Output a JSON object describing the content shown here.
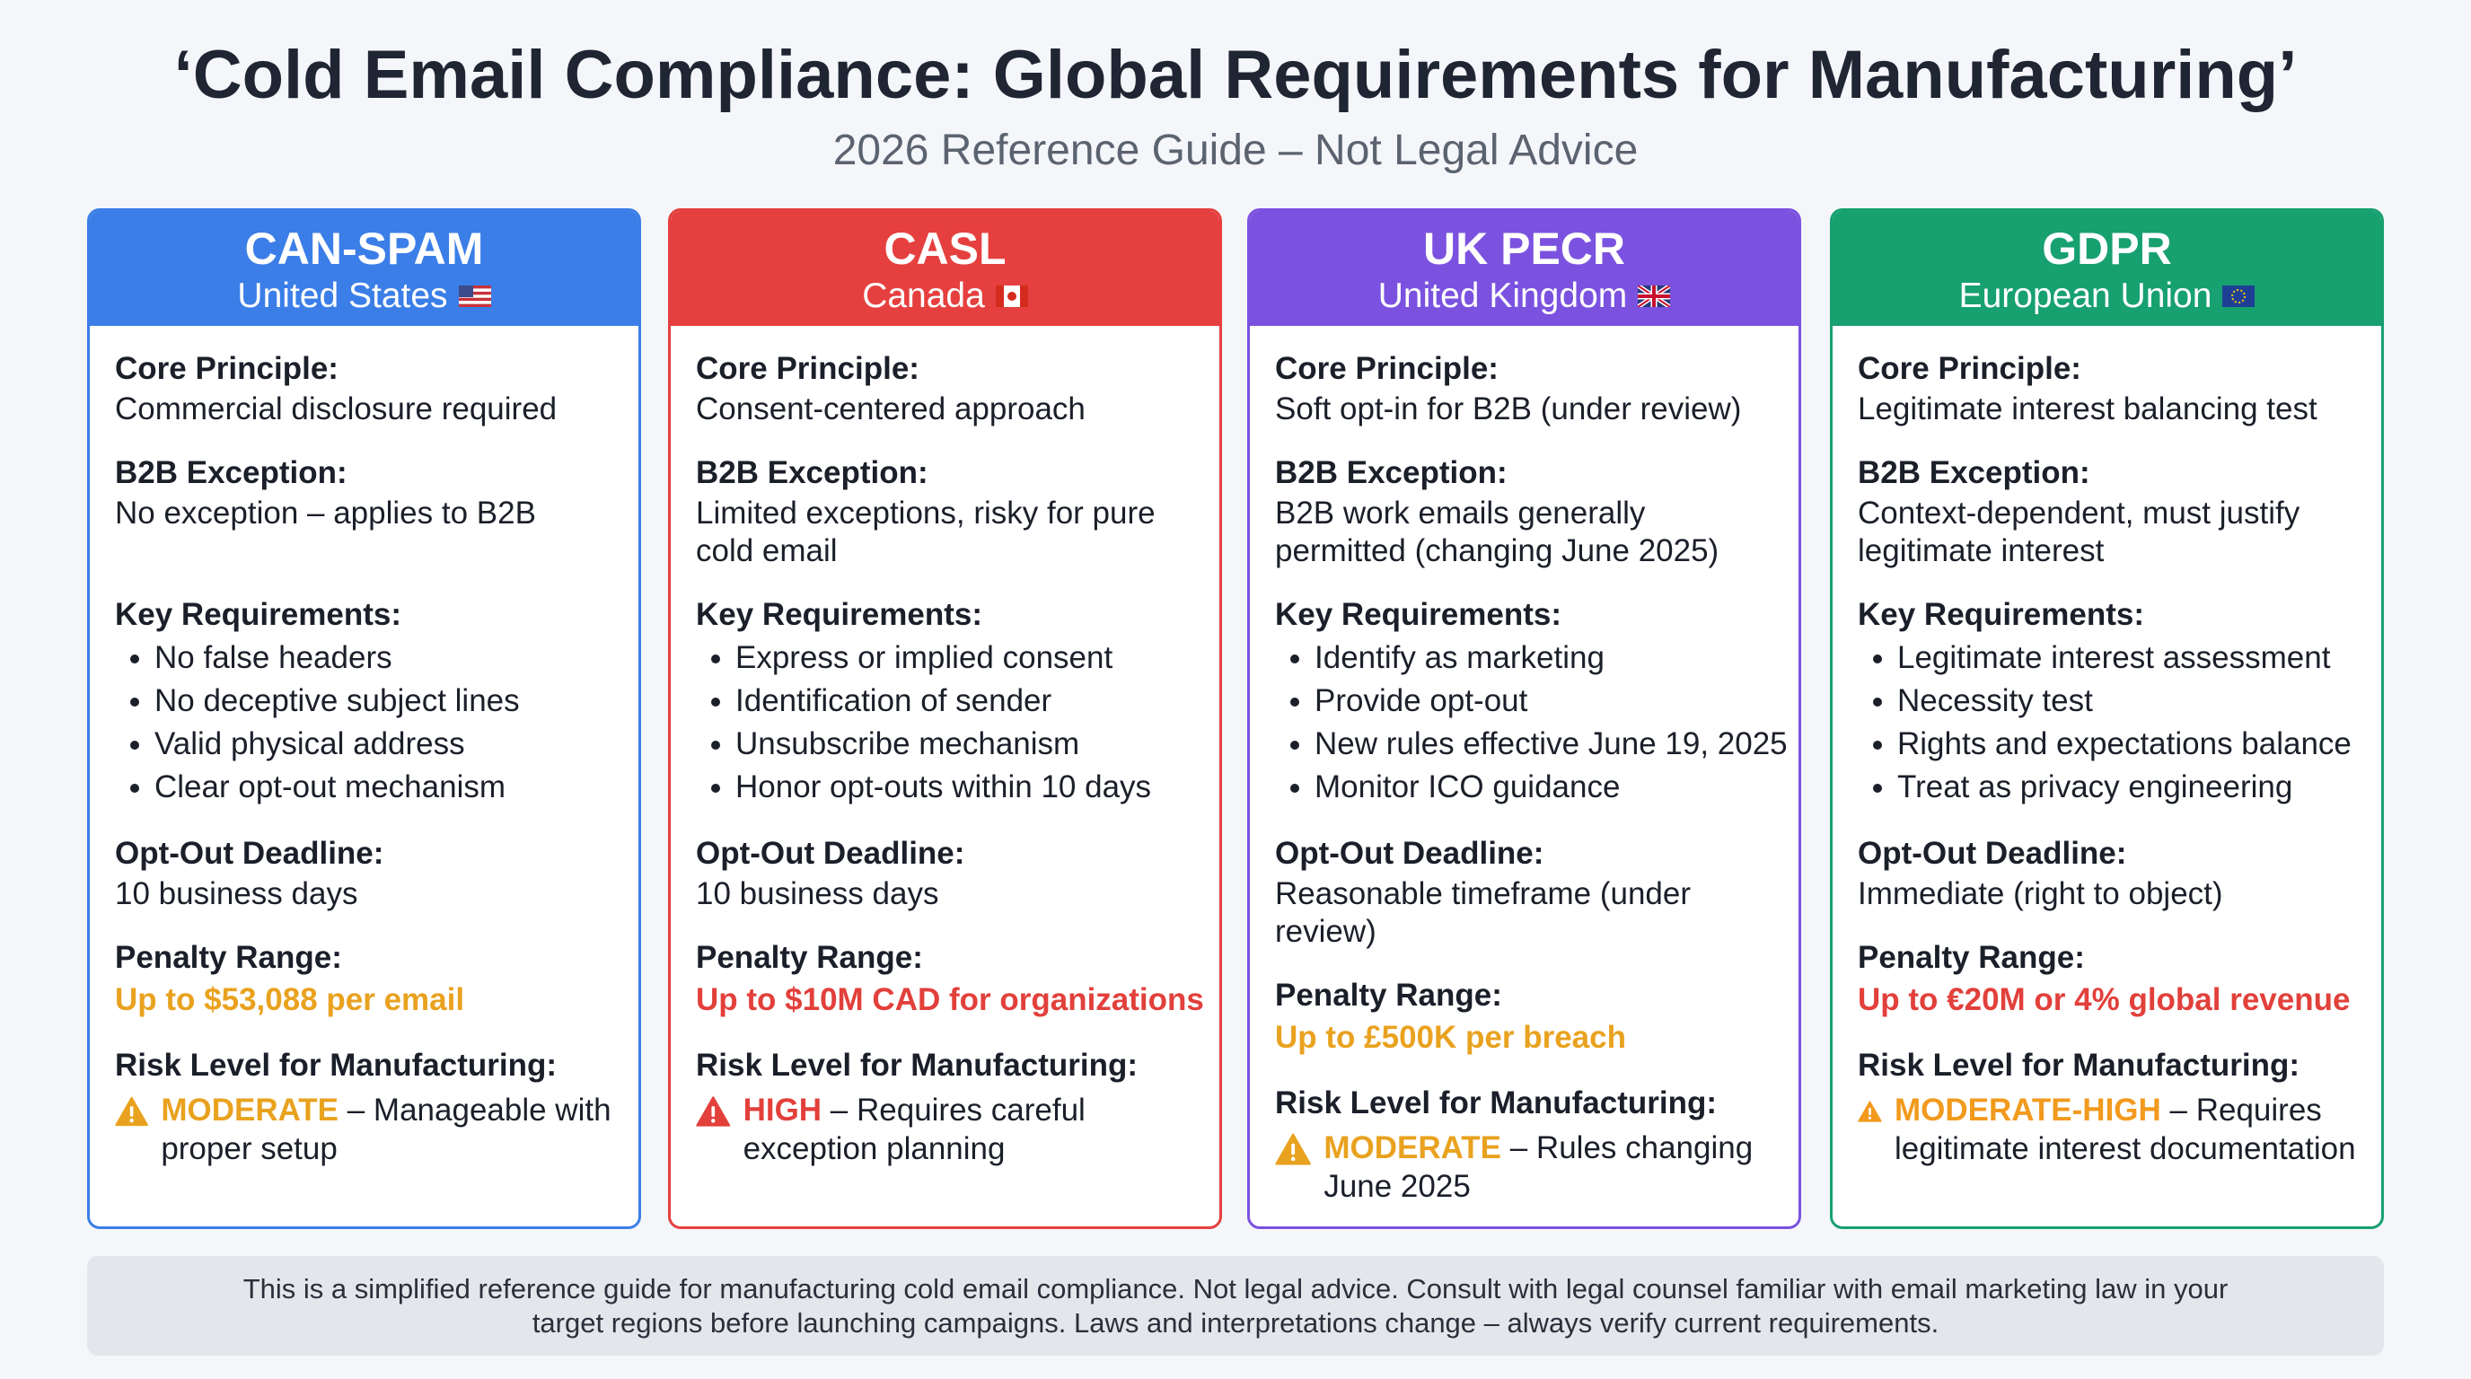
{
  "header": {
    "title": "‘Cold Email Compliance: Global Requirements for Manufacturing’",
    "subtitle": "2026 Reference Guide – Not Legal Advice"
  },
  "cards": [
    {
      "title": "CAN-SPAM",
      "region": "United States",
      "color": "#3b7ee8",
      "flag": "us",
      "core_label": "Core Principle:",
      "core": "Commercial disclosure required",
      "b2b_label": "B2B Exception:",
      "b2b": "No exception – applies to B2B",
      "key_label": "Key Requirements:",
      "key": [
        "No false headers",
        "No deceptive subject lines",
        "Valid physical address",
        "Clear opt-out mechanism"
      ],
      "deadline_label": "Opt-Out Deadline:",
      "deadline": "10 business days",
      "penalty_label": "Penalty Range:",
      "penalty": "Up to $53,088 per email",
      "penalty_color": "#e9a21f",
      "risk_label": "Risk Level for Manufacturing:",
      "risk_level": "MODERATE",
      "risk_text": "– Manageable with proper setup",
      "risk_color": "#e9a21f"
    },
    {
      "title": "CASL",
      "region": "Canada",
      "color": "#e5403f",
      "flag": "ca",
      "core_label": "Core Principle:",
      "core": "Consent-centered approach",
      "b2b_label": "B2B Exception:",
      "b2b": "Limited exceptions, risky for pure cold email",
      "key_label": "Key Requirements:",
      "key": [
        "Express or implied consent",
        "Identification of sender",
        "Unsubscribe mechanism",
        "Honor opt-outs within 10 days"
      ],
      "deadline_label": "Opt-Out Deadline:",
      "deadline": "10 business days",
      "penalty_label": "Penalty Range:",
      "penalty": "Up to $10M CAD for organizations",
      "penalty_color": "#e2403b",
      "risk_label": "Risk Level for Manufacturing:",
      "risk_level": "HIGH",
      "risk_text": "– Requires careful exception planning",
      "risk_color": "#e2403b"
    },
    {
      "title": "UK PECR",
      "region": "United Kingdom",
      "color": "#7b52e0",
      "flag": "uk",
      "core_label": "Core Principle:",
      "core": "Soft opt-in for B2B (under review)",
      "b2b_label": "B2B Exception:",
      "b2b": "B2B work emails generally permitted (changing June 2025)",
      "key_label": "Key Requirements:",
      "key": [
        "Identify as marketing",
        "Provide opt-out",
        "New rules effective June 19, 2025",
        "Monitor ICO guidance"
      ],
      "deadline_label": "Opt-Out Deadline:",
      "deadline": "Reasonable timeframe (under review)",
      "penalty_label": "Penalty Range:",
      "penalty": "Up to £500K per breach",
      "penalty_color": "#e9a21f",
      "risk_label": "Risk Level for Manufacturing:",
      "risk_level": "MODERATE",
      "risk_text": "– Rules changing June 2025",
      "risk_color": "#e9a21f"
    },
    {
      "title": "GDPR",
      "region": "European Union",
      "color": "#17a070",
      "flag": "eu",
      "core_label": "Core Principle:",
      "core": "Legitimate interest balancing test",
      "b2b_label": "B2B Exception:",
      "b2b": "Context-dependent, must justify legitimate interest",
      "key_label": "Key Requirements:",
      "key": [
        "Legitimate interest assessment",
        "Necessity test",
        "Rights and expectations balance",
        "Treat as privacy engineering"
      ],
      "deadline_label": "Opt-Out Deadline:",
      "deadline": "Immediate (right to object)",
      "penalty_label": "Penalty Range:",
      "penalty": "Up to €20M or 4% global revenue",
      "penalty_color": "#e2403b",
      "risk_label": "Risk Level for Manufacturing:",
      "risk_level": "MODERATE-HIGH",
      "risk_text": "– Requires legitimate interest documentation",
      "risk_color": "#f29a1e"
    }
  ],
  "footer": "This is a simplified reference guide for manufacturing cold email compliance. Not legal advice. Consult with legal counsel familiar with email marketing law in your target regions before launching campaigns. Laws and interpretations change – always verify current requirements."
}
